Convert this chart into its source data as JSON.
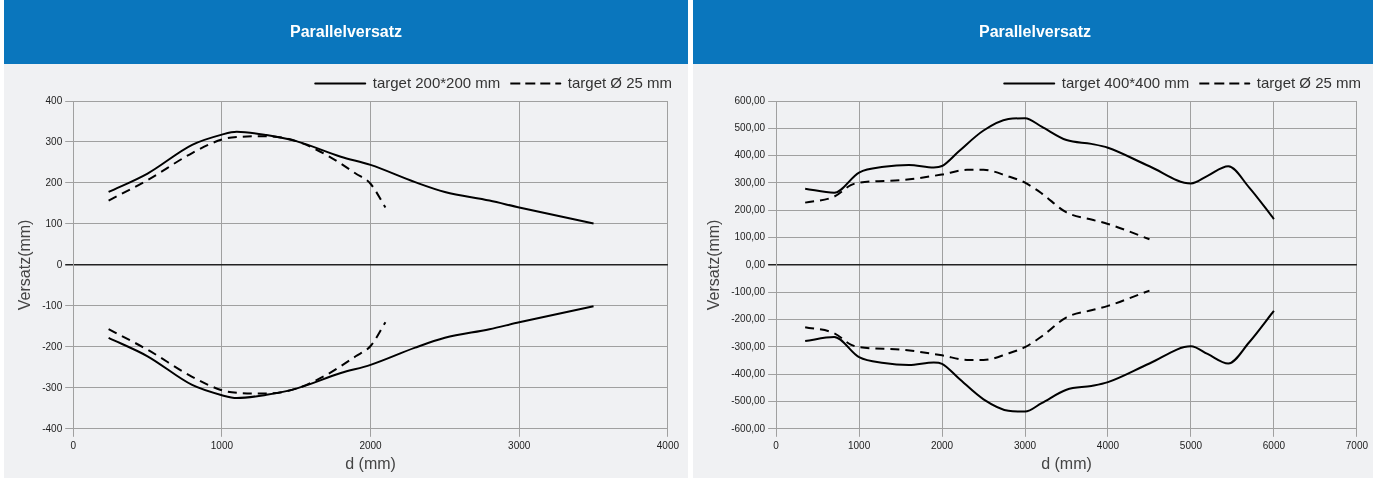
{
  "chart_data": [
    {
      "type": "line",
      "title": "Parallelversatz",
      "xlabel": "d (mm)",
      "ylabel": "Versatz(mm)",
      "xlim": [
        0,
        4000
      ],
      "xticks": [
        0,
        1000,
        2000,
        3000,
        4000
      ],
      "ylim": [
        -400,
        400
      ],
      "yticks": [
        -400,
        -300,
        -200,
        -100,
        0,
        100,
        200,
        300,
        400
      ],
      "grid": true,
      "legend": "top right",
      "marker": "none",
      "series": [
        {
          "name": "target 200*200 mm",
          "color": "#000000",
          "line_style": "solid",
          "x": [
            238,
            500,
            800,
            1000,
            1100,
            1300,
            1500,
            1800,
            2000,
            2300,
            2500,
            2800,
            3000,
            3500
          ],
          "values": [
            178,
            223,
            293,
            318,
            325,
            317,
            302,
            264,
            244,
            202,
            178,
            157,
            140,
            101
          ]
        },
        {
          "name": "target Ø 25 mm",
          "color": "#000000",
          "line_style": "dashed",
          "x": [
            238,
            500,
            800,
            1000,
            1100,
            1300,
            1500,
            1700,
            1900,
            2000,
            2100
          ],
          "values": [
            157,
            207,
            273,
            306,
            312,
            314,
            302,
            269,
            223,
            198,
            140
          ]
        },
        {
          "color": "#000000",
          "line_style": "solid",
          "x": [
            238,
            500,
            800,
            1000,
            1100,
            1300,
            1500,
            1800,
            2000,
            2300,
            2500,
            2800,
            3000,
            3500
          ],
          "values": [
            -178,
            -223,
            -293,
            -318,
            -325,
            -317,
            -302,
            -264,
            -244,
            -202,
            -178,
            -157,
            -140,
            -101
          ]
        },
        {
          "color": "#000000",
          "line_style": "dashed",
          "x": [
            238,
            500,
            800,
            1000,
            1100,
            1300,
            1500,
            1700,
            1900,
            2000,
            2100
          ],
          "values": [
            -157,
            -207,
            -273,
            -306,
            -312,
            -314,
            -302,
            -269,
            -223,
            -198,
            -140
          ]
        }
      ]
    },
    {
      "type": "line",
      "title": "Parallelversatz",
      "xlabel": "d (mm)",
      "ylabel": "Versatz(mm)",
      "xlim": [
        0,
        7000
      ],
      "xticks": [
        0,
        1000,
        2000,
        3000,
        4000,
        5000,
        6000,
        7000
      ],
      "ylim": [
        -600,
        600
      ],
      "yticks": [
        {
          "value": -600,
          "label": "-600,00"
        },
        {
          "value": -500,
          "label": "-500,00"
        },
        {
          "value": -400,
          "label": "-400,00"
        },
        {
          "value": -300,
          "label": "-300,00"
        },
        {
          "value": -200,
          "label": "-200,00"
        },
        {
          "value": -100,
          "label": "-100,00"
        },
        {
          "value": 0,
          "label": "0,00"
        },
        {
          "value": 100,
          "label": "100,00"
        },
        {
          "value": 200,
          "label": "200,00"
        },
        {
          "value": 300,
          "label": "300,00"
        },
        {
          "value": 400,
          "label": "400,00"
        },
        {
          "value": 500,
          "label": "500,00"
        },
        {
          "value": 600,
          "label": "600,00"
        }
      ],
      "grid": true,
      "legend": "top right",
      "marker": "none",
      "series": [
        {
          "name": "target 400*400 mm",
          "color": "#000000",
          "line_style": "solid",
          "x": [
            350,
            700,
            1000,
            1300,
            1600,
            1900,
            2000,
            2200,
            2500,
            2800,
            3000,
            3200,
            3500,
            3800,
            4000,
            4500,
            5000,
            5200,
            5450,
            5700,
            6000
          ],
          "values": [
            279,
            264,
            338,
            359,
            366,
            357,
            362,
            415,
            492,
            534,
            537,
            506,
            457,
            443,
            429,
            361,
            298,
            326,
            361,
            284,
            168
          ]
        },
        {
          "name": "target Ø 25 mm",
          "color": "#000000",
          "line_style": "dashed",
          "x": [
            350,
            700,
            900,
            1000,
            1500,
            2000,
            2300,
            2500,
            2800,
            3000,
            3200,
            3500,
            3800,
            4000,
            4500
          ],
          "values": [
            228,
            250,
            292,
            301,
            310,
            331,
            348,
            348,
            324,
            301,
            262,
            192,
            166,
            150,
            94
          ]
        },
        {
          "color": "#000000",
          "line_style": "solid",
          "x": [
            350,
            700,
            1000,
            1300,
            1600,
            1900,
            2000,
            2200,
            2500,
            2800,
            3000,
            3200,
            3500,
            3800,
            4000,
            4500,
            5000,
            5200,
            5450,
            5700,
            6000
          ],
          "values": [
            -279,
            -264,
            -338,
            -359,
            -366,
            -357,
            -362,
            -415,
            -492,
            -534,
            -537,
            -506,
            -457,
            -443,
            -429,
            -361,
            -298,
            -326,
            -361,
            -284,
            -168
          ]
        },
        {
          "color": "#000000",
          "line_style": "dashed",
          "x": [
            350,
            700,
            900,
            1000,
            1500,
            2000,
            2300,
            2500,
            2800,
            3000,
            3200,
            3500,
            3800,
            4000,
            4500
          ],
          "values": [
            -228,
            -250,
            -292,
            -301,
            -310,
            -331,
            -348,
            -348,
            -324,
            -301,
            -262,
            -192,
            -166,
            -150,
            -94
          ]
        }
      ]
    }
  ]
}
